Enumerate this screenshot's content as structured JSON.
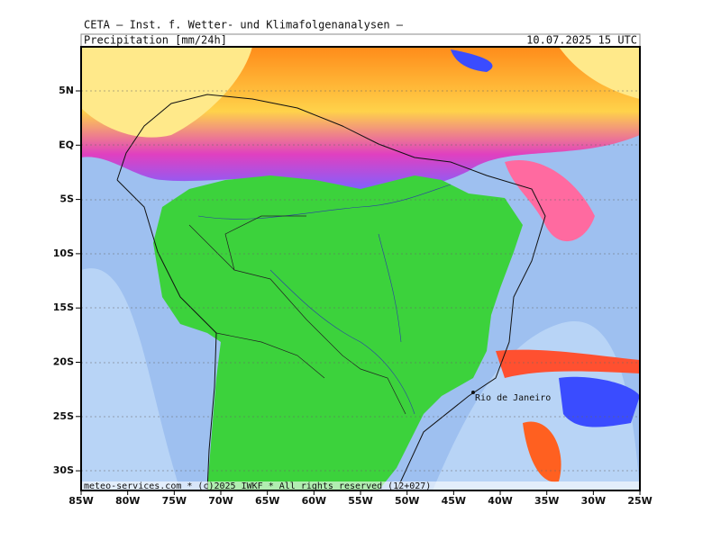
{
  "header": {
    "title": "CETA – Inst. f. Wetter- und Klimafolgenanalysen –",
    "field": "Precipitation [mm/24h]",
    "valid_time": "10.07.2025 15 UTC"
  },
  "map": {
    "lat_labels": [
      "5N",
      "EQ",
      "5S",
      "10S",
      "15S",
      "20S",
      "25S",
      "30S"
    ],
    "lon_labels": [
      "85W",
      "80W",
      "75W",
      "70W",
      "65W",
      "60W",
      "55W",
      "50W",
      "45W",
      "40W",
      "35W",
      "30W",
      "25W"
    ],
    "city_label": "Rio de Janeiro",
    "footer": "meteo-services.com * (c)2025 IWKF * All rights reserved (12+027)"
  }
}
